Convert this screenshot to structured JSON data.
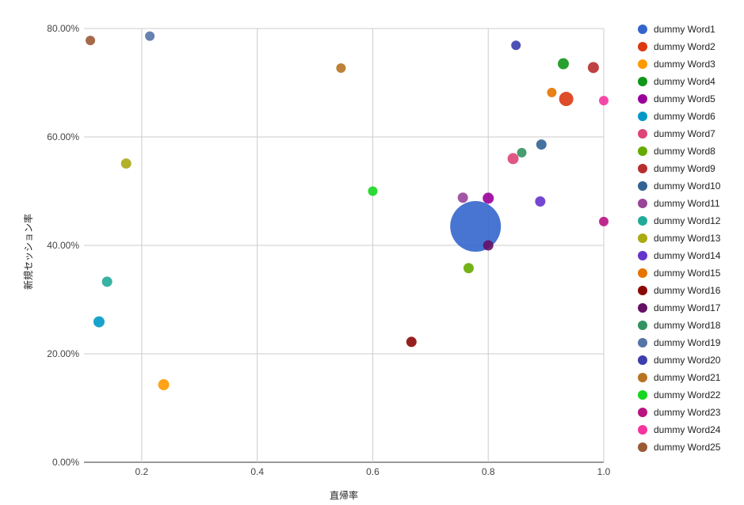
{
  "chart_data": {
    "type": "scatter",
    "xlabel": "直帰率",
    "ylabel": "新規セッション率",
    "xlim": [
      0.1,
      1.0
    ],
    "ylim": [
      0,
      0.8
    ],
    "x_ticks": [
      0.2,
      0.4,
      0.6,
      0.8,
      1.0
    ],
    "x_tick_labels": [
      "0.2",
      "0.4",
      "0.6",
      "0.8",
      "1.0"
    ],
    "y_ticks": [
      0,
      0.2,
      0.4,
      0.6,
      0.8
    ],
    "y_tick_labels": [
      "0.00%",
      "20.00%",
      "40.00%",
      "60.00%",
      "80.00%"
    ],
    "grid": true,
    "legend_position": "right",
    "series": [
      {
        "name": "dummy Word1",
        "color": "#3366cc",
        "x": 0.778,
        "y": 0.435,
        "size": 32
      },
      {
        "name": "dummy Word2",
        "color": "#dc3912",
        "x": 0.935,
        "y": 0.67,
        "size": 9
      },
      {
        "name": "dummy Word3",
        "color": "#ff9900",
        "x": 0.238,
        "y": 0.143,
        "size": 7
      },
      {
        "name": "dummy Word4",
        "color": "#109618",
        "x": 0.93,
        "y": 0.735,
        "size": 7
      },
      {
        "name": "dummy Word5",
        "color": "#990099",
        "x": 0.8,
        "y": 0.487,
        "size": 7
      },
      {
        "name": "dummy Word6",
        "color": "#0099c6",
        "x": 0.126,
        "y": 0.259,
        "size": 7
      },
      {
        "name": "dummy Word7",
        "color": "#dd4477",
        "x": 0.843,
        "y": 0.56,
        "size": 7
      },
      {
        "name": "dummy Word8",
        "color": "#66aa00",
        "x": 0.766,
        "y": 0.358,
        "size": 6.5
      },
      {
        "name": "dummy Word9",
        "color": "#b82e2e",
        "x": 0.982,
        "y": 0.728,
        "size": 7
      },
      {
        "name": "dummy Word10",
        "color": "#316395",
        "x": 0.892,
        "y": 0.586,
        "size": 6.5
      },
      {
        "name": "dummy Word11",
        "color": "#994499",
        "x": 0.756,
        "y": 0.488,
        "size": 6.5
      },
      {
        "name": "dummy Word12",
        "color": "#22aa99",
        "x": 0.14,
        "y": 0.333,
        "size": 6.5
      },
      {
        "name": "dummy Word13",
        "color": "#aaaa11",
        "x": 0.173,
        "y": 0.551,
        "size": 6.5
      },
      {
        "name": "dummy Word14",
        "color": "#6633cc",
        "x": 0.89,
        "y": 0.481,
        "size": 6.5
      },
      {
        "name": "dummy Word15",
        "color": "#e67300",
        "x": 0.91,
        "y": 0.682,
        "size": 6
      },
      {
        "name": "dummy Word16",
        "color": "#8b0707",
        "x": 0.667,
        "y": 0.222,
        "size": 6.5
      },
      {
        "name": "dummy Word17",
        "color": "#651067",
        "x": 0.8,
        "y": 0.4,
        "size": 6.5
      },
      {
        "name": "dummy Word18",
        "color": "#329262",
        "x": 0.858,
        "y": 0.571,
        "size": 6
      },
      {
        "name": "dummy Word19",
        "color": "#5574a6",
        "x": 0.214,
        "y": 0.786,
        "size": 6
      },
      {
        "name": "dummy Word20",
        "color": "#3b3eac",
        "x": 0.848,
        "y": 0.769,
        "size": 6
      },
      {
        "name": "dummy Word21",
        "color": "#b77322",
        "x": 0.545,
        "y": 0.727,
        "size": 6
      },
      {
        "name": "dummy Word22",
        "color": "#16d620",
        "x": 0.6,
        "y": 0.5,
        "size": 6
      },
      {
        "name": "dummy Word23",
        "color": "#b91383",
        "x": 1.0,
        "y": 0.444,
        "size": 6
      },
      {
        "name": "dummy Word24",
        "color": "#f4359e",
        "x": 1.0,
        "y": 0.667,
        "size": 6
      },
      {
        "name": "dummy Word25",
        "color": "#9c5935",
        "x": 0.111,
        "y": 0.778,
        "size": 6
      }
    ]
  }
}
